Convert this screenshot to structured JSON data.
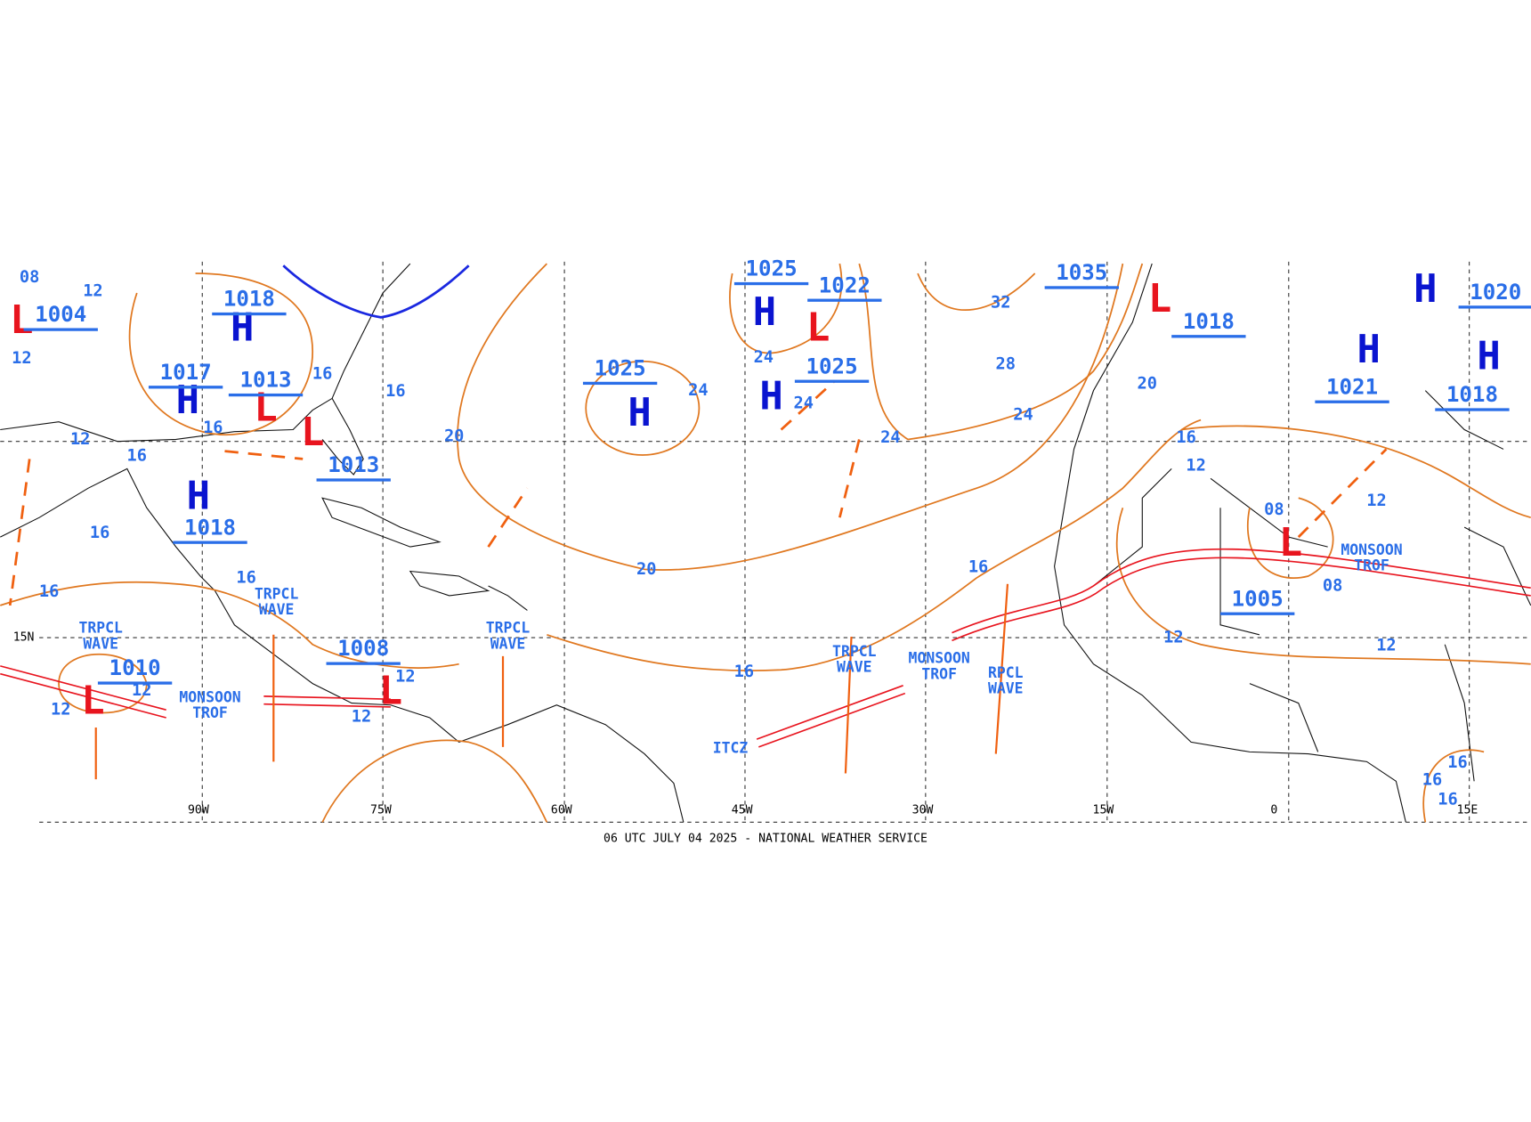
{
  "map": {
    "footer": "06 UTC JULY 04 2025 - NATIONAL WEATHER SERVICE",
    "latitude_labels": [
      "15N"
    ],
    "longitude_labels": [
      "90W",
      "75W",
      "60W",
      "45W",
      "30W",
      "15W",
      "0",
      "15E"
    ],
    "pressure_centers": [
      {
        "letter": "L",
        "value": "1004"
      },
      {
        "letter": "H",
        "value": "1018"
      },
      {
        "letter": "H",
        "value": "1017"
      },
      {
        "letter": "L",
        "value": "1013"
      },
      {
        "letter": "L",
        "value": "1013"
      },
      {
        "letter": "H",
        "value": "1018"
      },
      {
        "letter": "L",
        "value": "1010"
      },
      {
        "letter": "L",
        "value": "1008"
      },
      {
        "letter": "H",
        "value": "1025"
      },
      {
        "letter": "H",
        "value": "1025"
      },
      {
        "letter": "L",
        "value": "1022"
      },
      {
        "letter": "H",
        "value": "1025"
      },
      {
        "value": "1035"
      },
      {
        "letter": "L",
        "value": "1018"
      },
      {
        "letter": "H"
      },
      {
        "letter": "H",
        "value": "1021"
      },
      {
        "letter": "H",
        "value": "1018"
      },
      {
        "value": "1020"
      },
      {
        "letter": "L",
        "value": "1005"
      }
    ],
    "isobar_labels": [
      "08",
      "12",
      "12",
      "12",
      "16",
      "16",
      "16",
      "16",
      "20",
      "16",
      "16",
      "16",
      "12",
      "12",
      "12",
      "12",
      "24",
      "24",
      "24",
      "32",
      "28",
      "24",
      "24",
      "20",
      "16",
      "16",
      "20",
      "16",
      "12",
      "08",
      "12",
      "08",
      "12",
      "12",
      "16",
      "16",
      "16"
    ],
    "features": [
      [
        "TRPCL",
        "WAVE"
      ],
      [
        "TRPCL",
        "WAVE"
      ],
      [
        "TRPCL",
        "WAVE"
      ],
      [
        "TRPCL",
        "WAVE"
      ],
      [
        "MONSOON",
        "TROF"
      ],
      [
        "MONSOON",
        "TROF"
      ],
      [
        "MONSOON",
        "TROF"
      ],
      [
        "RPCL",
        "WAVE"
      ],
      [
        "ITCZ"
      ]
    ]
  }
}
